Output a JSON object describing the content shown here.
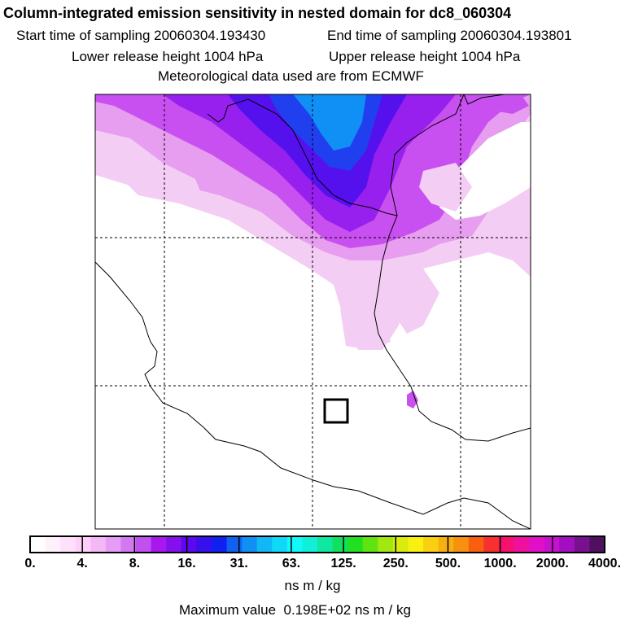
{
  "header": {
    "title": "Column-integrated emission sensitivity in nested domain for dc8_060304",
    "start_time": "Start time of sampling 20060304.193430",
    "end_time": "End time of sampling 20060304.193801",
    "lower_height": "Lower release height 1004 hPa",
    "upper_height": "Upper release height 1004 hPa",
    "met_data": "Meteorological data used are from ECMWF"
  },
  "colorbar": {
    "colors": [
      "#ffffff",
      "#fff0fc",
      "#fee0fa",
      "#fdd0f8",
      "#f4b8f6",
      "#e49cf4",
      "#d478f2",
      "#c050f0",
      "#a818ee",
      "#8410ee",
      "#5e08ee",
      "#3810ee",
      "#1020f0",
      "#1060f2",
      "#1090f4",
      "#10b8f6",
      "#10d8f8",
      "#10f8f8",
      "#10f0d8",
      "#10e8a0",
      "#10e060",
      "#20e020",
      "#60e410",
      "#a0e810",
      "#d8ec10",
      "#f8f010",
      "#f8d010",
      "#f8b010",
      "#f89010",
      "#f86010",
      "#f83030",
      "#f81070",
      "#f010a0",
      "#e010c8",
      "#c810d0",
      "#a010c0",
      "#781090",
      "#501060"
    ],
    "tick_labels": [
      "0.",
      "4.",
      "8.",
      "16.",
      "31.",
      "63.",
      "125.",
      "250.",
      "500.",
      "1000.",
      "2000.",
      "4000."
    ],
    "units": "ns m / kg"
  },
  "max_value": {
    "label": "Maximum value",
    "value": "0.198E+02 ns m / kg"
  },
  "map": {
    "receptor_marker": "square-marker",
    "colors": {
      "light": "#f4cdf4",
      "pink": "#e89ef0",
      "magenta": "#c850f0",
      "violet": "#9820ee",
      "indigo": "#5510ee",
      "blue": "#2040f0",
      "sky": "#1090f4"
    }
  }
}
